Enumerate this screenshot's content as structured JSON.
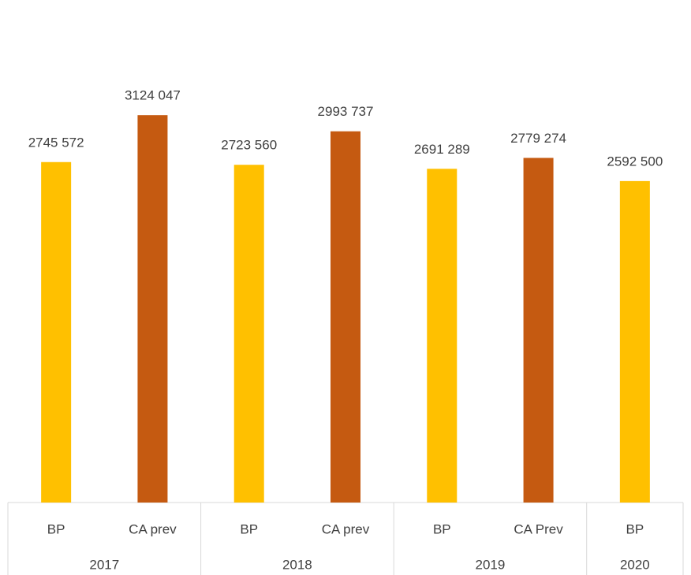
{
  "chart_data": {
    "type": "bar",
    "groups": [
      {
        "name": "2017",
        "categories": [
          "BP",
          "CA prev"
        ],
        "values": [
          2745572,
          3124047
        ],
        "value_labels": [
          "2745 572",
          "3124 047"
        ],
        "colors": [
          "#FFC000",
          "#C55A11"
        ]
      },
      {
        "name": "2018",
        "categories": [
          "BP",
          "CA prev"
        ],
        "values": [
          2723560,
          2993737
        ],
        "value_labels": [
          "2723 560",
          "2993 737"
        ],
        "colors": [
          "#FFC000",
          "#C55A11"
        ]
      },
      {
        "name": "2019",
        "categories": [
          "BP",
          "CA Prev"
        ],
        "values": [
          2691289,
          2779274
        ],
        "value_labels": [
          "2691 289",
          "2779 274"
        ],
        "colors": [
          "#FFC000",
          "#C55A11"
        ]
      },
      {
        "name": "2020",
        "categories": [
          "BP"
        ],
        "values": [
          2592500
        ],
        "value_labels": [
          "2592 500"
        ],
        "colors": [
          "#FFC000"
        ]
      }
    ],
    "ylim": [
      0,
      3500000
    ]
  }
}
